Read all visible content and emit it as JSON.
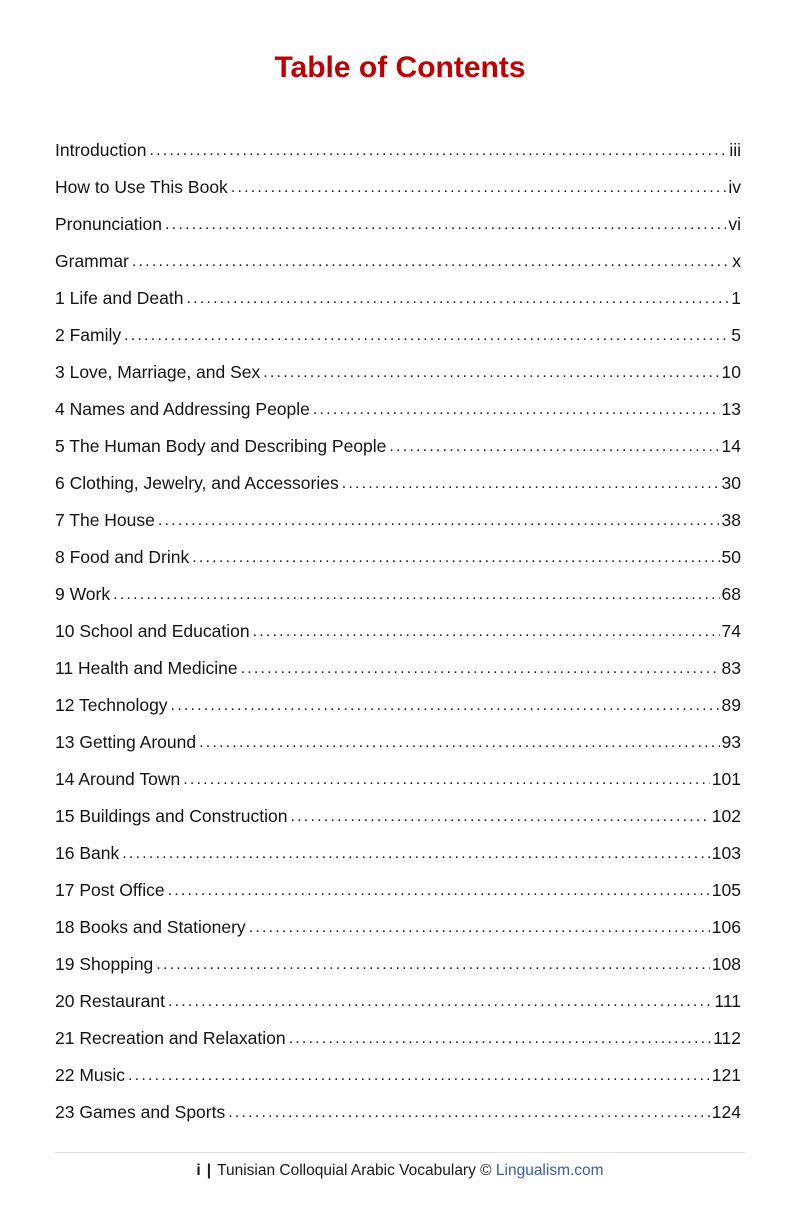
{
  "page": {
    "title": "Table of Contents",
    "title_color": "#C00000"
  },
  "toc": {
    "leader_char": ".",
    "entries": [
      {
        "label": "Introduction",
        "page": "iii"
      },
      {
        "label": "How to Use This Book",
        "page": "iv"
      },
      {
        "label": "Pronunciation",
        "page": "vi"
      },
      {
        "label": "Grammar",
        "page": "x"
      },
      {
        "label": "1 Life and Death",
        "page": "1"
      },
      {
        "label": "2 Family",
        "page": "5"
      },
      {
        "label": "3 Love, Marriage, and Sex",
        "page": "10"
      },
      {
        "label": "4 Names and Addressing People",
        "page": "13"
      },
      {
        "label": "5 The Human Body and Describing People",
        "page": "14"
      },
      {
        "label": "6 Clothing, Jewelry, and Accessories",
        "page": "30"
      },
      {
        "label": "7 The House",
        "page": "38"
      },
      {
        "label": "8 Food and Drink",
        "page": "50"
      },
      {
        "label": "9 Work",
        "page": "68"
      },
      {
        "label": "10 School and Education",
        "page": "74"
      },
      {
        "label": "11 Health and Medicine",
        "page": "83"
      },
      {
        "label": "12 Technology",
        "page": "89"
      },
      {
        "label": "13 Getting Around",
        "page": "93"
      },
      {
        "label": "14 Around Town",
        "page": "101"
      },
      {
        "label": "15 Buildings and Construction",
        "page": "102"
      },
      {
        "label": "16 Bank",
        "page": "103"
      },
      {
        "label": "17 Post Office",
        "page": "105"
      },
      {
        "label": "18 Books and Stationery",
        "page": "106"
      },
      {
        "label": "19 Shopping",
        "page": "108"
      },
      {
        "label": "20 Restaurant",
        "page": "111"
      },
      {
        "label": "21 Recreation and Relaxation",
        "page": "112"
      },
      {
        "label": "22 Music",
        "page": "121"
      },
      {
        "label": "23 Games and Sports",
        "page": "124"
      }
    ]
  },
  "footer": {
    "page_number": "i",
    "separator": "|",
    "text": "Tunisian Colloquial Arabic Vocabulary ©",
    "link": "Lingualism.com",
    "link_color": "#3A5E9C"
  }
}
